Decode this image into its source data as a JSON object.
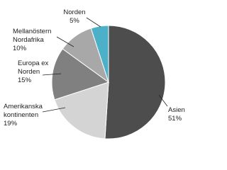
{
  "chart_data": {
    "type": "pie",
    "categories": [
      "Asien",
      "Amerikanska\nkontinenten",
      "Europa ex\nNorden",
      "Mellanöstern\nNordafrika",
      "Norden"
    ],
    "values": [
      51,
      19,
      15,
      10,
      5
    ],
    "value_labels": [
      "51%",
      "19%",
      "15%",
      "10%",
      "5%"
    ],
    "colors": [
      "#4d4d4d",
      "#d4d4d4",
      "#808080",
      "#a8a8a8",
      "#4bb0c8"
    ]
  }
}
